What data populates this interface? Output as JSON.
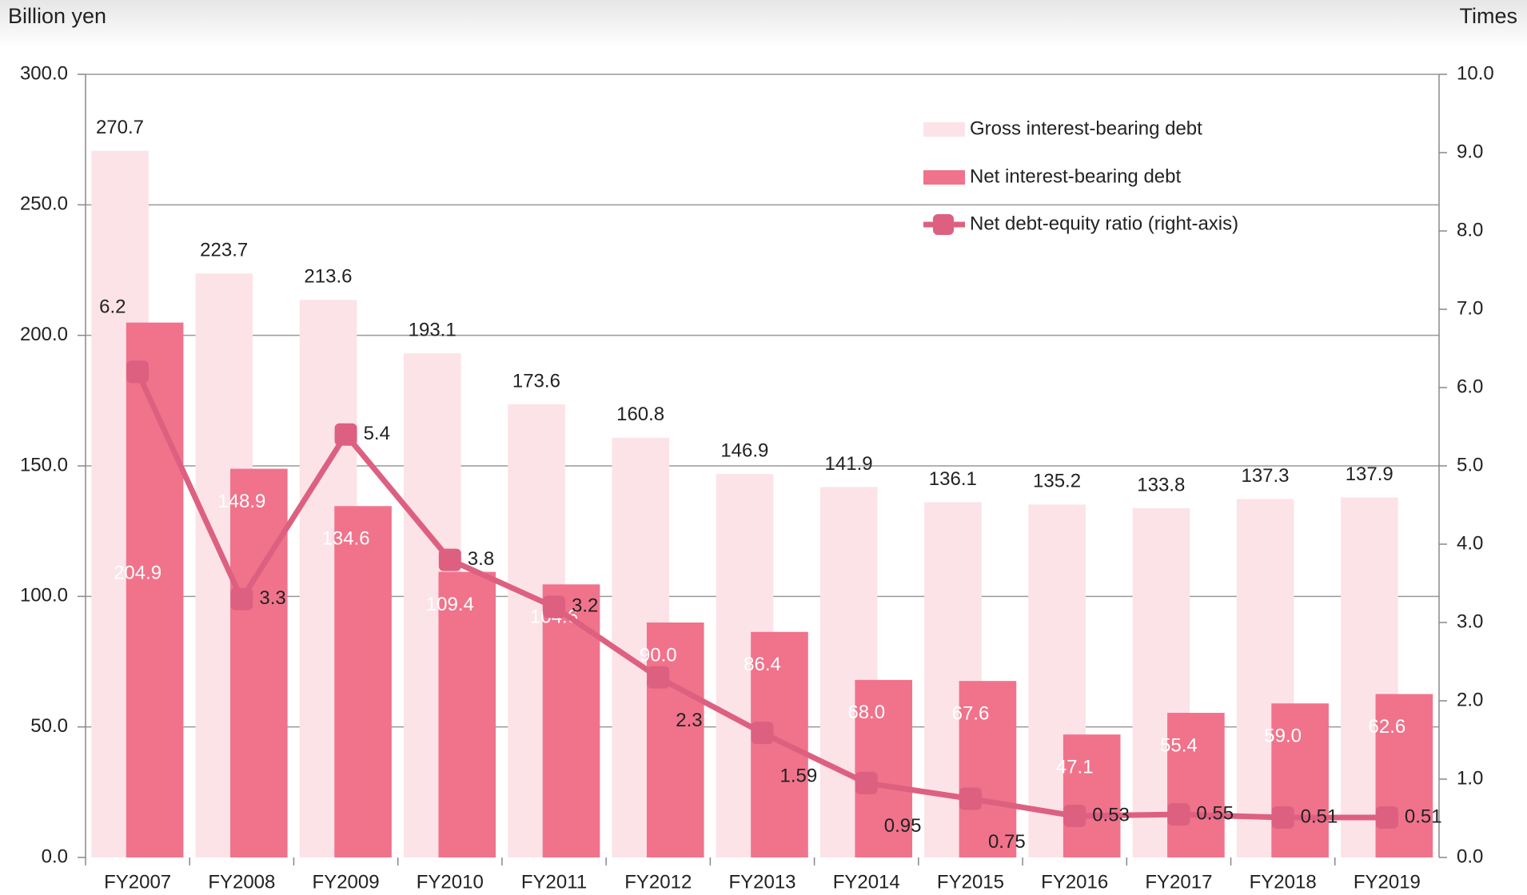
{
  "chart_data": {
    "type": "bar_line",
    "y_label": "Billion yen",
    "y2_label": "Times",
    "categories": [
      "FY2007",
      "FY2008",
      "FY2009",
      "FY2010",
      "FY2011",
      "FY2012",
      "FY2013",
      "FY2014",
      "FY2015",
      "FY2016",
      "FY2017",
      "FY2018",
      "FY2019"
    ],
    "series": [
      {
        "name": "Gross interest-bearing debt",
        "type": "bar",
        "color": "#fce3e8",
        "values": [
          270.7,
          223.7,
          213.6,
          193.1,
          173.6,
          160.8,
          146.9,
          141.9,
          136.1,
          135.2,
          133.8,
          137.3,
          137.9
        ]
      },
      {
        "name": "Net interest-bearing debt",
        "type": "bar",
        "color": "#f0738b",
        "values": [
          204.9,
          148.9,
          134.6,
          109.4,
          104.6,
          90.0,
          86.4,
          68.0,
          67.6,
          47.1,
          55.4,
          59.0,
          62.6
        ],
        "value_labels": [
          "204.9",
          "148.9",
          "134.6",
          "109.4",
          "104.6",
          "90.0",
          "86.4",
          "68.0",
          "67.6",
          "47.1",
          "55.4",
          "59.0",
          "62.6"
        ]
      },
      {
        "name": "Net debt-equity ratio (right-axis)",
        "type": "line",
        "axis": "y2",
        "color": "#dd6080",
        "values": [
          6.2,
          3.3,
          5.4,
          3.8,
          3.2,
          2.3,
          1.59,
          0.95,
          0.75,
          0.53,
          0.55,
          0.51,
          0.51
        ]
      }
    ],
    "ylim": [
      0,
      300
    ],
    "yticks": [
      {
        "value": 0,
        "label": "0.0"
      },
      {
        "value": 50,
        "label": "50.0"
      },
      {
        "value": 100,
        "label": "100.0"
      },
      {
        "value": 150,
        "label": "150.0"
      },
      {
        "value": 200,
        "label": "200.0"
      },
      {
        "value": 250,
        "label": "250.0"
      },
      {
        "value": 300,
        "label": "300.0"
      }
    ],
    "y2lim": [
      0,
      10
    ],
    "y2ticks": [
      {
        "value": 0,
        "label": "0.0"
      },
      {
        "value": 1,
        "label": "1.0"
      },
      {
        "value": 2,
        "label": "2.0"
      },
      {
        "value": 3,
        "label": "3.0"
      },
      {
        "value": 4,
        "label": "4.0"
      },
      {
        "value": 5,
        "label": "5.0"
      },
      {
        "value": 6,
        "label": "6.0"
      },
      {
        "value": 7,
        "label": "7.0"
      },
      {
        "value": 8,
        "label": "8.0"
      },
      {
        "value": 9,
        "label": "9.0"
      },
      {
        "value": 10,
        "label": "10.0"
      }
    ],
    "grid": true,
    "legend": "top-right"
  }
}
